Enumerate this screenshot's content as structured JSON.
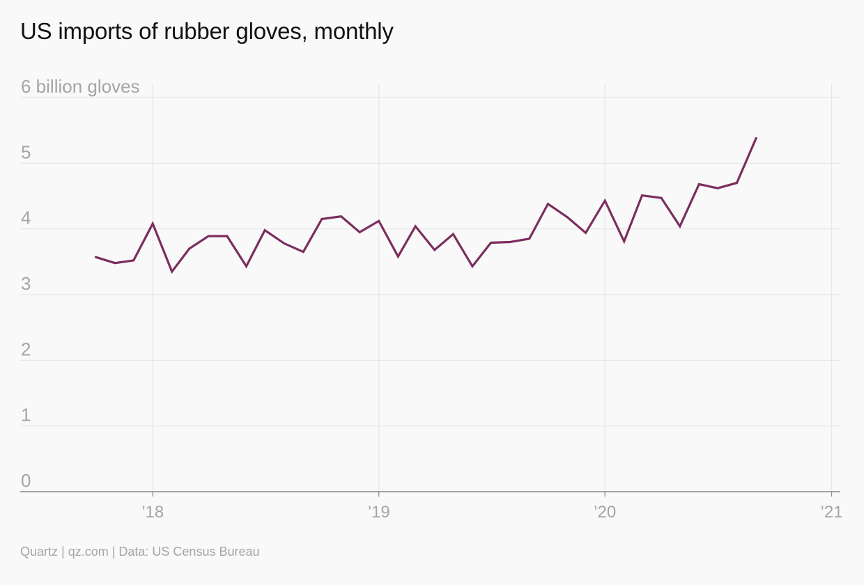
{
  "title": "US imports of rubber gloves, monthly",
  "source": "Quartz | qz.com | Data: US Census Bureau",
  "colors": {
    "line": "#7b2e5e",
    "grid": "#e6e6e6",
    "axis": "#888888",
    "tick_text": "#a5a5a5",
    "background": "#f9f9f9"
  },
  "chart_data": {
    "type": "line",
    "title": "US imports of rubber gloves, monthly",
    "xlabel": "",
    "ylabel": "billion gloves",
    "ylim": [
      0,
      6
    ],
    "xlim": [
      "2017-06-01",
      "2021-01-15"
    ],
    "yticks": [
      {
        "value": 6,
        "label": "6 billion gloves"
      },
      {
        "value": 5,
        "label": "5"
      },
      {
        "value": 4,
        "label": "4"
      },
      {
        "value": 3,
        "label": "3"
      },
      {
        "value": 2,
        "label": "2"
      },
      {
        "value": 1,
        "label": "1"
      },
      {
        "value": 0,
        "label": "0"
      }
    ],
    "xticks": [
      {
        "date": "2018-01-01",
        "label": "’18"
      },
      {
        "date": "2019-01-01",
        "label": "’19"
      },
      {
        "date": "2020-01-01",
        "label": "’20"
      },
      {
        "date": "2021-01-01",
        "label": "’21"
      }
    ],
    "grid": true,
    "legend": "none",
    "series": [
      {
        "x": [
          "2017-10",
          "2017-11",
          "2017-12",
          "2018-01",
          "2018-02",
          "2018-03",
          "2018-04",
          "2018-05",
          "2018-06",
          "2018-07",
          "2018-08",
          "2018-09",
          "2018-10",
          "2018-11",
          "2018-12",
          "2019-01",
          "2019-02",
          "2019-03",
          "2019-04",
          "2019-05",
          "2019-06",
          "2019-07",
          "2019-08",
          "2019-09",
          "2019-10",
          "2019-11",
          "2019-12",
          "2020-01",
          "2020-02",
          "2020-03",
          "2020-04",
          "2020-05",
          "2020-06",
          "2020-07",
          "2020-08",
          "2020-09"
        ],
        "values": [
          3.57,
          3.48,
          3.52,
          4.08,
          3.35,
          3.7,
          3.89,
          3.89,
          3.43,
          3.98,
          3.78,
          3.65,
          4.15,
          4.19,
          3.95,
          4.12,
          3.58,
          4.04,
          3.68,
          3.92,
          3.43,
          3.79,
          3.8,
          3.85,
          4.38,
          4.18,
          3.94,
          4.43,
          3.81,
          4.51,
          4.47,
          4.04,
          4.68,
          4.62,
          4.7,
          5.38
        ]
      }
    ]
  }
}
